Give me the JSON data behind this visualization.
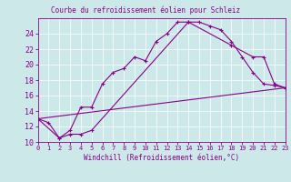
{
  "title": "Courbe du refroidissement éolien pour Schleiz",
  "xlabel": "Windchill (Refroidissement éolien,°C)",
  "bg_color": "#cce8e8",
  "line_color": "#880088",
  "xmin": 0,
  "xmax": 23,
  "ymin": 10,
  "ymax": 26,
  "yticks": [
    10,
    12,
    14,
    16,
    18,
    20,
    22,
    24
  ],
  "xticks": [
    0,
    1,
    2,
    3,
    4,
    5,
    6,
    7,
    8,
    9,
    10,
    11,
    12,
    13,
    14,
    15,
    16,
    17,
    18,
    19,
    20,
    21,
    22,
    23
  ],
  "line1_x": [
    0,
    1,
    2,
    3,
    4,
    5,
    6,
    7,
    8,
    9,
    10,
    11,
    12,
    13,
    14,
    15,
    16,
    17,
    18,
    19,
    20,
    21,
    22,
    23
  ],
  "line1_y": [
    13.0,
    12.5,
    10.5,
    11.5,
    14.5,
    14.5,
    17.5,
    19.0,
    19.5,
    21.0,
    20.5,
    23.0,
    24.0,
    25.5,
    25.5,
    25.5,
    25.0,
    24.5,
    23.0,
    21.0,
    19.0,
    17.5,
    17.3,
    17.0
  ],
  "line2_x": [
    0,
    2,
    3,
    4,
    5,
    14,
    18,
    20,
    21,
    22,
    23
  ],
  "line2_y": [
    13.0,
    10.5,
    11.0,
    11.0,
    11.5,
    25.5,
    22.5,
    21.0,
    21.0,
    17.5,
    17.0
  ],
  "line3_x": [
    0,
    23
  ],
  "line3_y": [
    13.0,
    17.0
  ]
}
